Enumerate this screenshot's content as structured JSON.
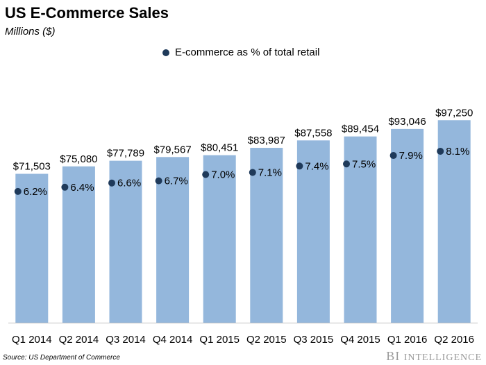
{
  "header": {
    "title": "US E-Commerce Sales",
    "subtitle": "Millions ($)"
  },
  "legend": {
    "label": "E-commerce as % of total retail",
    "marker_color": "#1f3a5a"
  },
  "footer": {
    "source": "Source: US Department of Commerce",
    "brand_initials": "BI",
    "brand_word": "INTELLIGENCE"
  },
  "colors": {
    "bar": "#94b7dc",
    "dot": "#1f3a5a",
    "axis": "#bfbfbf"
  },
  "chart_data": {
    "type": "bar",
    "title": "US E-Commerce Sales",
    "subtitle": "Millions ($)",
    "categories": [
      "Q1 2014",
      "Q2 2014",
      "Q3 2014",
      "Q4 2014",
      "Q1 2015",
      "Q2 2015",
      "Q3 2015",
      "Q4 2015",
      "Q1 2016",
      "Q2 2016"
    ],
    "series": [
      {
        "values": [
          71503,
          75080,
          77789,
          79567,
          80451,
          83987,
          87558,
          89454,
          93046,
          97250
        ],
        "labels": [
          "$71,503",
          "$75,080",
          "$77,789",
          "$79,567",
          "$80,451",
          "$83,987",
          "$87,558",
          "$89,454",
          "$93,046",
          "$97,250"
        ],
        "color": "#94b7dc"
      },
      {
        "name": "E-commerce as % of total retail",
        "values": [
          6.2,
          6.4,
          6.6,
          6.7,
          7.0,
          7.1,
          7.4,
          7.5,
          7.9,
          8.1
        ],
        "labels": [
          "6.2%",
          "6.4%",
          "6.6%",
          "6.7%",
          "7.0%",
          "7.1%",
          "7.4%",
          "7.5%",
          "7.9%",
          "8.1%"
        ],
        "color": "#1f3a5a"
      }
    ],
    "ylim": [
      0,
      100000
    ],
    "y2lim": [
      0,
      17.5
    ],
    "grid": false,
    "legend_position": "top-center"
  }
}
